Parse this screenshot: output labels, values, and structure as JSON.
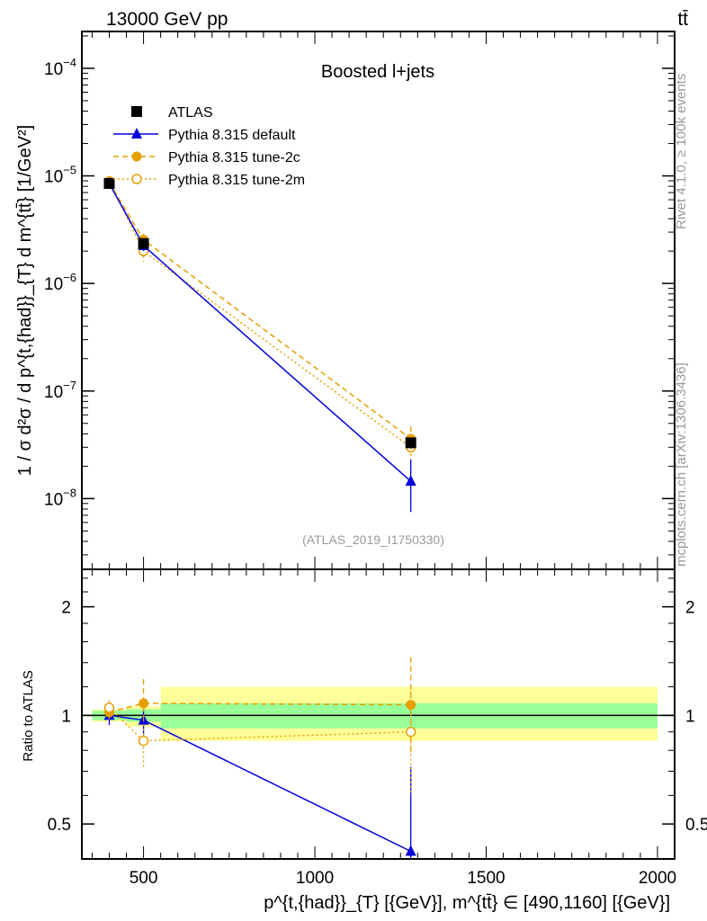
{
  "header": {
    "left": "13000 GeV pp",
    "right": "tt̄"
  },
  "side_labels": {
    "rivet": "Rivet 4.1.0, ≥ 100k events",
    "mcplots": "mcplots.cern.ch [arXiv:1306.3436]"
  },
  "chart_data": [
    {
      "type": "line",
      "title": "Boosted l+jets",
      "analysis_tag": "(ATLAS_2019_I1750330)",
      "ylabel": "1 / σ d²σ / d p^{t,{had}}_{T} d m^{tt̄} [1/GeV²]",
      "yscale": "log",
      "ylim": [
        2.2e-09,
        0.00022
      ],
      "xlim": [
        320,
        2050
      ],
      "y_tick_labels": [
        "10^-8",
        "10^-7",
        "10^-6",
        "10^-5",
        "10^-4"
      ],
      "y_ticks": [
        1e-08,
        1e-07,
        1e-06,
        1e-05,
        0.0001
      ],
      "legend_placement": "top-left",
      "series": [
        {
          "name": "ATLAS",
          "color": "#000000",
          "marker": "square",
          "x": [
            400,
            500,
            1280
          ],
          "y": [
            8.5e-06,
            2.35e-06,
            3.3e-08
          ],
          "yerr_lo": [
            8e-06,
            2.2e-06,
            3e-08
          ],
          "yerr_hi": [
            9e-06,
            2.5e-06,
            3.6e-08
          ]
        },
        {
          "name": "Pythia 8.315 default",
          "color": "#0000dd",
          "marker": "triangle",
          "line": "solid",
          "x": [
            400,
            500,
            1280
          ],
          "y": [
            8.5e-06,
            2.25e-06,
            1.45e-08
          ],
          "yerr_lo": [
            8.1e-06,
            2e-06,
            7.5e-09
          ],
          "yerr_hi": [
            8.9e-06,
            2.5e-06,
            2.3e-08
          ]
        },
        {
          "name": "Pythia 8.315 tune-2c",
          "color": "#e69f00",
          "marker": "circle",
          "line": "dashed",
          "x": [
            400,
            500,
            1280
          ],
          "y": [
            8.7e-06,
            2.55e-06,
            3.6e-08
          ],
          "yerr_lo": [
            8.2e-06,
            2.2e-06,
            2.6e-08
          ],
          "yerr_hi": [
            9.3e-06,
            2.9e-06,
            4.7e-08
          ]
        },
        {
          "name": "Pythia 8.315 tune-2m",
          "color": "#e69f00",
          "marker": "open-circle",
          "line": "dotted",
          "x": [
            400,
            500,
            1280
          ],
          "y": [
            8.9e-06,
            2e-06,
            3e-08
          ],
          "yerr_lo": [
            8.3e-06,
            1.6e-06,
            2.2e-08
          ],
          "yerr_hi": [
            9.5e-06,
            2.4e-06,
            3.8e-08
          ]
        }
      ]
    },
    {
      "type": "line",
      "ylabel": "Ratio to ATLAS",
      "xlabel": "p^{t,{had}}_{T} [{GeV}], m^{tt̄} ∈ [490,1160] [{GeV}]",
      "yscale": "log",
      "ylim": [
        0.4,
        2.54
      ],
      "xlim": [
        320,
        2050
      ],
      "x_ticks": [
        500,
        1000,
        1500,
        2000
      ],
      "x_tick_labels": [
        "500",
        "1000",
        "1500",
        "2000"
      ],
      "y_ticks": [
        0.5,
        1,
        2
      ],
      "y_tick_labels": [
        "0.5",
        "1",
        "2"
      ],
      "bands": {
        "bins": [
          [
            350,
            450
          ],
          [
            450,
            550
          ],
          [
            550,
            2000
          ]
        ],
        "green": [
          [
            0.97,
            1.03
          ],
          [
            0.96,
            1.04
          ],
          [
            0.92,
            1.08
          ]
        ],
        "yellow": [
          [
            0.96,
            1.04
          ],
          [
            0.93,
            1.06
          ],
          [
            0.85,
            1.2
          ]
        ],
        "green_color": "#99ff99",
        "yellow_color": "#ffff99"
      },
      "series": [
        {
          "name": "Pythia 8.315 default",
          "color": "#0000dd",
          "line": "solid",
          "marker": "triangle",
          "x": [
            400,
            500,
            1280
          ],
          "y": [
            1.0,
            0.97,
            0.42
          ],
          "yerr_lo": [
            0.94,
            0.88,
            0.3
          ],
          "yerr_hi": [
            1.05,
            1.06,
            0.72
          ]
        },
        {
          "name": "Pythia 8.315 tune-2c",
          "color": "#e69f00",
          "line": "dashed",
          "marker": "circle",
          "x": [
            400,
            500,
            1280
          ],
          "y": [
            1.02,
            1.08,
            1.07
          ],
          "yerr_lo": [
            0.97,
            0.95,
            0.78
          ],
          "yerr_hi": [
            1.07,
            1.26,
            1.45
          ]
        },
        {
          "name": "Pythia 8.315 tune-2m",
          "color": "#e69f00",
          "line": "dotted",
          "marker": "open-circle",
          "x": [
            400,
            500,
            1280
          ],
          "y": [
            1.05,
            0.85,
            0.9
          ],
          "yerr_lo": [
            0.98,
            0.71,
            0.6
          ],
          "yerr_hi": [
            1.1,
            1.0,
            1.2
          ]
        }
      ]
    }
  ]
}
